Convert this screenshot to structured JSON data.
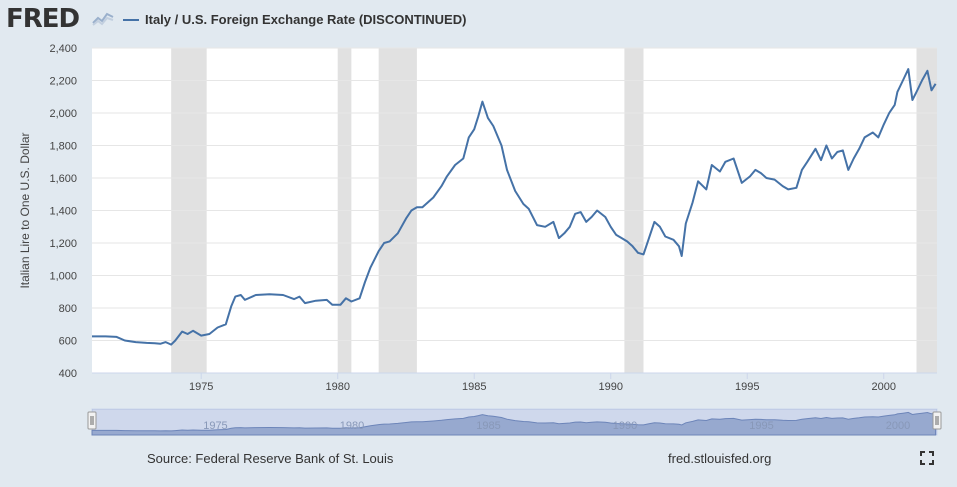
{
  "header": {
    "logo": "FRED",
    "series_title": "Italy / U.S. Foreign Exchange Rate (DISCONTINUED)"
  },
  "footer": {
    "source": "Source: Federal Reserve Bank of St. Louis",
    "url": "fred.stlouisfed.org"
  },
  "icons": {
    "logo_graph": "line-chart-icon",
    "fullscreen": "fullscreen-icon"
  },
  "colors": {
    "series": "#4572a7",
    "recession": "#e1e1e1",
    "background": "#e1e9f0",
    "plot_background": "#ffffff",
    "navigator_fill": "#8da0c6"
  },
  "chart_data": {
    "type": "line",
    "title": "Italy / U.S. Foreign Exchange Rate (DISCONTINUED)",
    "xlabel": "",
    "ylabel": "Italian Lire to One U.S. Dollar",
    "xlim": [
      1971.0,
      2001.95
    ],
    "ylim": [
      400,
      2400
    ],
    "yticks": [
      400,
      600,
      800,
      1000,
      1200,
      1400,
      1600,
      1800,
      2000,
      2200,
      2400
    ],
    "ytick_labels": [
      "400",
      "600",
      "800",
      "1,000",
      "1,200",
      "1,400",
      "1,600",
      "1,800",
      "2,000",
      "2,200",
      "2,400"
    ],
    "xticks": [
      1975,
      1980,
      1985,
      1990,
      1995,
      2000
    ],
    "xtick_labels": [
      "1975",
      "1980",
      "1985",
      "1990",
      "1995",
      "2000"
    ],
    "grid": true,
    "recessions": [
      [
        1973.9,
        1975.2
      ],
      [
        1980.0,
        1980.5
      ],
      [
        1981.5,
        1982.9
      ],
      [
        1990.5,
        1991.2
      ],
      [
        2001.2,
        2001.95
      ]
    ],
    "series": [
      {
        "name": "Italy / U.S. Foreign Exchange Rate (DISCONTINUED)",
        "x": [
          1971.0,
          1971.5,
          1971.9,
          1972.2,
          1972.6,
          1973.0,
          1973.3,
          1973.5,
          1973.7,
          1973.9,
          1974.05,
          1974.3,
          1974.5,
          1974.7,
          1975.0,
          1975.3,
          1975.6,
          1975.9,
          1976.1,
          1976.25,
          1976.45,
          1976.6,
          1977.0,
          1977.5,
          1978.0,
          1978.4,
          1978.6,
          1978.8,
          1979.2,
          1979.6,
          1979.8,
          1980.1,
          1980.3,
          1980.5,
          1980.8,
          1981.0,
          1981.2,
          1981.5,
          1981.7,
          1981.9,
          1982.2,
          1982.5,
          1982.7,
          1982.9,
          1983.1,
          1983.5,
          1983.8,
          1984.0,
          1984.3,
          1984.6,
          1984.8,
          1985.0,
          1985.15,
          1985.3,
          1985.5,
          1985.7,
          1986.0,
          1986.2,
          1986.5,
          1986.8,
          1987.0,
          1987.3,
          1987.6,
          1987.9,
          1988.1,
          1988.3,
          1988.5,
          1988.7,
          1988.9,
          1989.1,
          1989.3,
          1989.5,
          1989.8,
          1990.0,
          1990.2,
          1990.4,
          1990.6,
          1990.8,
          1991.0,
          1991.2,
          1991.4,
          1991.6,
          1991.8,
          1992.0,
          1992.3,
          1992.5,
          1992.6,
          1992.75,
          1993.0,
          1993.2,
          1993.5,
          1993.7,
          1994.0,
          1994.2,
          1994.5,
          1994.8,
          1995.1,
          1995.3,
          1995.5,
          1995.7,
          1996.0,
          1996.3,
          1996.5,
          1996.8,
          1997.0,
          1997.2,
          1997.5,
          1997.7,
          1997.9,
          1998.1,
          1998.3,
          1998.5,
          1998.7,
          1998.9,
          1999.1,
          1999.3,
          1999.6,
          1999.8,
          2000.0,
          2000.2,
          2000.4,
          2000.5,
          2000.7,
          2000.9,
          2001.05,
          2001.2,
          2001.4,
          2001.6,
          2001.75,
          2001.9
        ],
        "values": [
          625,
          625,
          622,
          600,
          590,
          585,
          583,
          580,
          590,
          575,
          600,
          655,
          640,
          660,
          630,
          640,
          680,
          700,
          810,
          870,
          880,
          850,
          880,
          885,
          880,
          855,
          870,
          830,
          845,
          850,
          820,
          820,
          860,
          840,
          860,
          960,
          1050,
          1150,
          1200,
          1210,
          1260,
          1350,
          1400,
          1420,
          1420,
          1480,
          1550,
          1610,
          1680,
          1720,
          1850,
          1900,
          1980,
          2070,
          1970,
          1920,
          1800,
          1650,
          1520,
          1440,
          1410,
          1310,
          1300,
          1330,
          1230,
          1260,
          1300,
          1380,
          1390,
          1330,
          1360,
          1400,
          1360,
          1300,
          1250,
          1230,
          1210,
          1180,
          1140,
          1130,
          1230,
          1330,
          1300,
          1240,
          1220,
          1180,
          1120,
          1320,
          1450,
          1580,
          1530,
          1680,
          1640,
          1700,
          1720,
          1570,
          1610,
          1650,
          1630,
          1600,
          1590,
          1550,
          1530,
          1540,
          1650,
          1700,
          1780,
          1710,
          1800,
          1720,
          1760,
          1770,
          1650,
          1720,
          1780,
          1850,
          1880,
          1850,
          1930,
          2000,
          2050,
          2130,
          2200,
          2270,
          2080,
          2130,
          2200,
          2260,
          2140,
          2180
        ]
      }
    ]
  }
}
